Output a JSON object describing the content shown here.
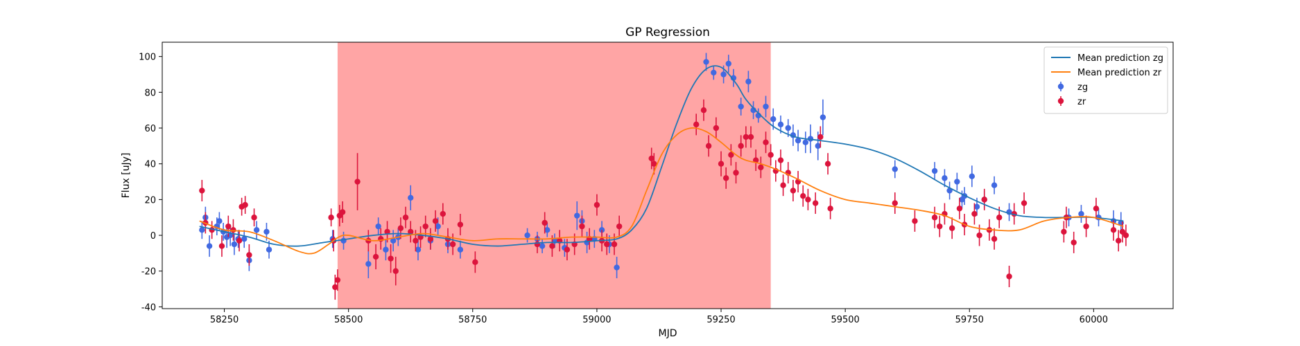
{
  "chart_data": {
    "type": "scatter",
    "title": "GP Regression",
    "xlabel": "MJD",
    "ylabel": "Flux [uJy]",
    "xlim": [
      58125,
      60160
    ],
    "ylim": [
      -41,
      108
    ],
    "xticks": [
      58250,
      58500,
      58750,
      59000,
      59250,
      59500,
      59750,
      60000
    ],
    "yticks": [
      -40,
      -20,
      0,
      20,
      40,
      60,
      80,
      100
    ],
    "grid": false,
    "legend_position": "top-right",
    "shaded_region": {
      "x_start": 58478,
      "x_end": 59350,
      "color": "#ff9b9b"
    },
    "colors": {
      "zg_line": "#1f77b4",
      "zr_line": "#ff7f0e",
      "zg_points": "#4169e1",
      "zr_points": "#dc143c"
    },
    "legend": [
      {
        "label": "Mean prediction zg",
        "kind": "line",
        "color": "#1f77b4"
      },
      {
        "label": "Mean prediction zr",
        "kind": "line",
        "color": "#ff7f0e"
      },
      {
        "label": "zg",
        "kind": "errorbar",
        "color": "#4169e1"
      },
      {
        "label": "zr",
        "kind": "errorbar",
        "color": "#dc143c"
      }
    ],
    "series": [
      {
        "name": "Mean prediction zg",
        "kind": "line",
        "color": "#1f77b4",
        "x": [
          58200,
          58250,
          58300,
          58350,
          58400,
          58450,
          58500,
          58550,
          58600,
          58650,
          58700,
          58750,
          58800,
          58850,
          58900,
          58950,
          59000,
          59040,
          59070,
          59100,
          59130,
          59160,
          59190,
          59220,
          59250,
          59280,
          59300,
          59330,
          59360,
          59400,
          59450,
          59500,
          59550,
          59600,
          59650,
          59700,
          59750,
          59800,
          59850,
          59900,
          59950,
          60000,
          60060
        ],
        "y": [
          5,
          2,
          -1,
          -5,
          -6,
          -4,
          -2,
          0,
          1,
          0,
          -2,
          -5,
          -6,
          -5,
          -4,
          -4,
          -3,
          -2,
          3,
          15,
          38,
          62,
          82,
          93,
          94,
          85,
          76,
          67,
          60,
          55,
          53,
          51,
          48,
          43,
          36,
          28,
          21,
          15,
          11,
          10,
          10,
          10,
          8
        ]
      },
      {
        "name": "Mean prediction zr",
        "kind": "line",
        "color": "#ff7f0e",
        "x": [
          58200,
          58250,
          58300,
          58350,
          58400,
          58430,
          58460,
          58480,
          58500,
          58550,
          58600,
          58650,
          58700,
          58750,
          58800,
          58850,
          58900,
          58950,
          59000,
          59040,
          59070,
          59100,
          59130,
          59160,
          59190,
          59220,
          59250,
          59280,
          59300,
          59330,
          59360,
          59400,
          59450,
          59500,
          59550,
          59600,
          59650,
          59700,
          59750,
          59800,
          59850,
          59900,
          59950,
          60000,
          60060
        ],
        "y": [
          8,
          3,
          2,
          -3,
          -9,
          -10,
          -5,
          -1,
          0,
          -3,
          -1,
          1,
          -1,
          -3,
          -2,
          -2,
          -2,
          -1,
          -1,
          -1,
          5,
          25,
          45,
          56,
          60,
          58,
          52,
          45,
          42,
          40,
          37,
          32,
          25,
          20,
          18,
          16,
          14,
          11,
          5,
          3,
          3,
          8,
          10,
          10,
          5
        ]
      },
      {
        "name": "zg",
        "kind": "errorbar",
        "color": "#4169e1",
        "x": [
          58205,
          58212,
          58220,
          58235,
          58240,
          58248,
          58255,
          58262,
          58270,
          58278,
          58290,
          58300,
          58315,
          58335,
          58340,
          58468,
          58490,
          58540,
          58560,
          58575,
          58590,
          58600,
          58625,
          58640,
          58665,
          58680,
          58700,
          58725,
          58860,
          58880,
          58890,
          58900,
          58915,
          58935,
          58960,
          58970,
          58980,
          58995,
          59010,
          59025,
          59040,
          59220,
          59235,
          59255,
          59265,
          59275,
          59290,
          59305,
          59315,
          59325,
          59340,
          59355,
          59370,
          59385,
          59395,
          59405,
          59420,
          59430,
          59445,
          59455,
          59600,
          59680,
          59700,
          59710,
          59725,
          59735,
          59740,
          59755,
          59765,
          59780,
          59800,
          59830,
          59950,
          59975,
          60010,
          60040,
          60055
        ],
        "y": [
          3,
          10,
          -6,
          5,
          8,
          2,
          -1,
          0,
          -5,
          -2,
          -2,
          -14,
          3,
          2,
          -8,
          -2,
          -3,
          -16,
          5,
          -8,
          -3,
          -1,
          21,
          -8,
          -3,
          5,
          -5,
          -8,
          0,
          -2,
          -6,
          3,
          -3,
          -7,
          11,
          8,
          -4,
          -2,
          3,
          -5,
          -18,
          97,
          91,
          90,
          96,
          88,
          72,
          86,
          70,
          67,
          72,
          65,
          62,
          60,
          56,
          53,
          52,
          54,
          50,
          66,
          37,
          36,
          32,
          25,
          30,
          20,
          22,
          33,
          16,
          20,
          28,
          13,
          10,
          12,
          10,
          8,
          7
        ],
        "err": [
          5,
          6,
          6,
          5,
          5,
          5,
          6,
          6,
          6,
          5,
          5,
          6,
          5,
          5,
          5,
          5,
          5,
          8,
          5,
          6,
          6,
          5,
          7,
          6,
          5,
          5,
          5,
          5,
          4,
          4,
          4,
          4,
          4,
          5,
          8,
          6,
          6,
          5,
          5,
          5,
          6,
          5,
          4,
          5,
          5,
          5,
          5,
          6,
          5,
          4,
          6,
          6,
          5,
          5,
          6,
          6,
          6,
          8,
          8,
          10,
          5,
          5,
          5,
          5,
          5,
          5,
          5,
          6,
          5,
          5,
          5,
          5,
          5,
          5,
          5,
          6,
          6
        ]
      },
      {
        "name": "zr",
        "kind": "errorbar",
        "color": "#dc143c",
        "x": [
          58205,
          58212,
          58225,
          58245,
          58258,
          58268,
          58280,
          58285,
          58292,
          58300,
          58310,
          58465,
          58470,
          58473,
          58478,
          58482,
          58488,
          58518,
          58540,
          58555,
          58565,
          58578,
          58585,
          58595,
          58605,
          58615,
          58625,
          58635,
          58645,
          58655,
          58665,
          58675,
          58690,
          58700,
          58710,
          58725,
          58755,
          58880,
          58895,
          58910,
          58925,
          58940,
          58955,
          58970,
          58985,
          59000,
          59010,
          59020,
          59035,
          59045,
          59110,
          59115,
          59200,
          59215,
          59225,
          59240,
          59250,
          59260,
          59270,
          59280,
          59290,
          59300,
          59310,
          59320,
          59330,
          59340,
          59350,
          59360,
          59370,
          59375,
          59385,
          59395,
          59405,
          59415,
          59425,
          59440,
          59450,
          59465,
          59470,
          59600,
          59640,
          59680,
          59690,
          59700,
          59715,
          59730,
          59740,
          59760,
          59770,
          59780,
          59790,
          59800,
          59810,
          59830,
          59840,
          59860,
          59940,
          59945,
          59960,
          59985,
          60005,
          60040,
          60050,
          60058,
          60065
        ],
        "y": [
          25,
          7,
          3,
          -6,
          5,
          3,
          -3,
          16,
          17,
          -11,
          10,
          10,
          -3,
          -29,
          -25,
          11,
          13,
          30,
          -3,
          -12,
          -2,
          2,
          -13,
          -20,
          4,
          10,
          2,
          -3,
          -1,
          5,
          -2,
          8,
          12,
          -2,
          -5,
          6,
          -15,
          -5,
          7,
          -6,
          -3,
          -8,
          -5,
          5,
          -2,
          17,
          -3,
          -5,
          -5,
          5,
          43,
          40,
          62,
          70,
          50,
          60,
          40,
          32,
          45,
          35,
          50,
          55,
          55,
          42,
          38,
          52,
          45,
          36,
          42,
          28,
          35,
          25,
          30,
          22,
          20,
          18,
          55,
          40,
          15,
          18,
          8,
          10,
          5,
          12,
          4,
          15,
          6,
          12,
          0,
          20,
          3,
          -2,
          10,
          -23,
          12,
          18,
          2,
          10,
          -4,
          5,
          15,
          3,
          -3,
          2,
          0
        ],
        "err": [
          6,
          6,
          5,
          6,
          6,
          6,
          6,
          5,
          5,
          6,
          5,
          5,
          6,
          7,
          6,
          6,
          6,
          16,
          6,
          7,
          6,
          6,
          8,
          8,
          6,
          6,
          6,
          6,
          6,
          6,
          6,
          6,
          6,
          6,
          6,
          6,
          6,
          5,
          6,
          6,
          6,
          6,
          6,
          6,
          6,
          6,
          6,
          6,
          6,
          6,
          6,
          6,
          6,
          6,
          6,
          6,
          7,
          6,
          6,
          6,
          6,
          6,
          6,
          6,
          6,
          6,
          6,
          6,
          6,
          6,
          6,
          6,
          6,
          6,
          6,
          6,
          6,
          6,
          6,
          6,
          6,
          6,
          6,
          6,
          6,
          6,
          6,
          6,
          6,
          6,
          6,
          6,
          6,
          6,
          6,
          6,
          6,
          6,
          6,
          6,
          6,
          6,
          6,
          6,
          6
        ]
      }
    ]
  }
}
